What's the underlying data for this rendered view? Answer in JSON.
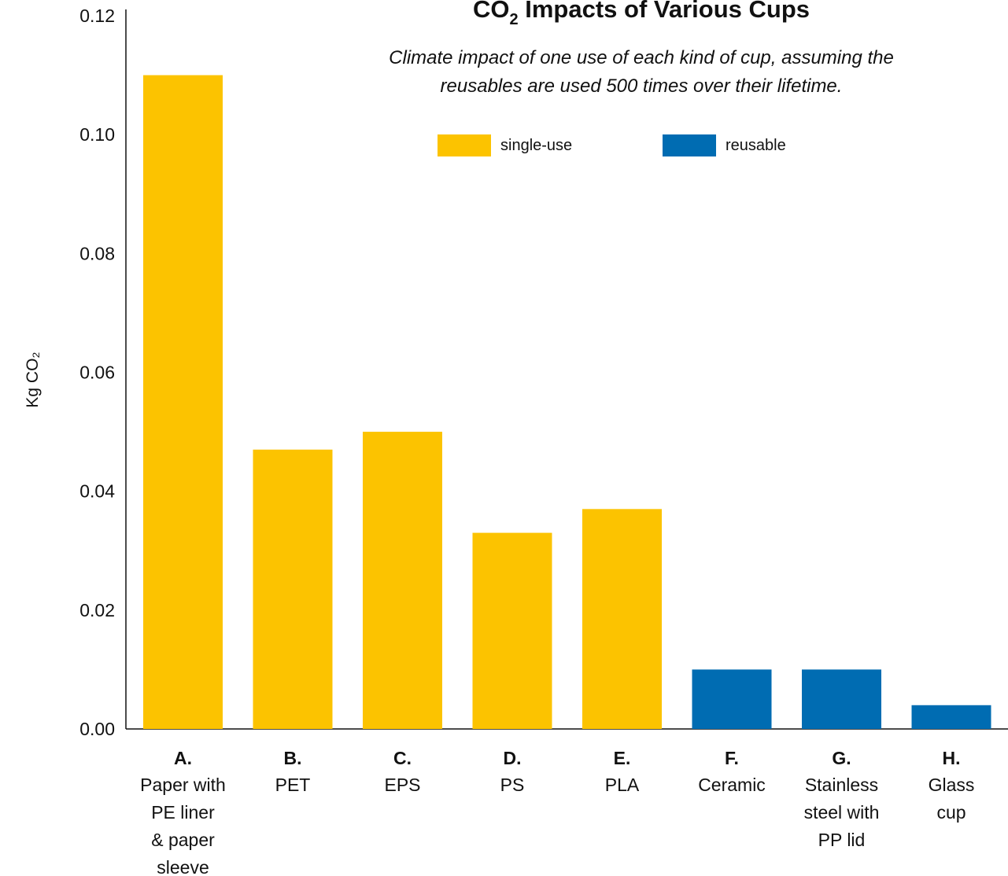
{
  "chart_data": {
    "type": "bar",
    "title": "CO",
    "title_subscript": "2",
    "title_rest": " Impacts of Various Cups",
    "subtitle_lines": [
      "Climate impact of one use of each kind of cup, assuming the",
      "reusables are used 500 times over their lifetime."
    ],
    "ylabel": "Kg CO₂",
    "ylim": [
      0,
      0.12
    ],
    "yticks": [
      "0.00",
      "0.02",
      "0.04",
      "0.06",
      "0.08",
      "0.10",
      "0.12"
    ],
    "grid": false,
    "legend_position": "top",
    "legend": [
      {
        "label": "single-use",
        "color": "#FCC300"
      },
      {
        "label": "reusable",
        "color": "#006CB2"
      }
    ],
    "categories": [
      {
        "letter": "A.",
        "lines": [
          "Paper with",
          "PE liner",
          "& paper",
          "sleeve"
        ]
      },
      {
        "letter": "B.",
        "lines": [
          "PET"
        ]
      },
      {
        "letter": "C.",
        "lines": [
          "EPS"
        ]
      },
      {
        "letter": "D.",
        "lines": [
          "PS"
        ]
      },
      {
        "letter": "E.",
        "lines": [
          "PLA"
        ]
      },
      {
        "letter": "F.",
        "lines": [
          "Ceramic"
        ]
      },
      {
        "letter": "G.",
        "lines": [
          "Stainless",
          "steel with",
          "PP lid"
        ]
      },
      {
        "letter": "H.",
        "lines": [
          "Glass",
          "cup"
        ]
      }
    ],
    "values": [
      0.11,
      0.047,
      0.05,
      0.033,
      0.037,
      0.01,
      0.01,
      0.004
    ],
    "types": [
      "single-use",
      "single-use",
      "single-use",
      "single-use",
      "single-use",
      "reusable",
      "reusable",
      "reusable"
    ]
  }
}
